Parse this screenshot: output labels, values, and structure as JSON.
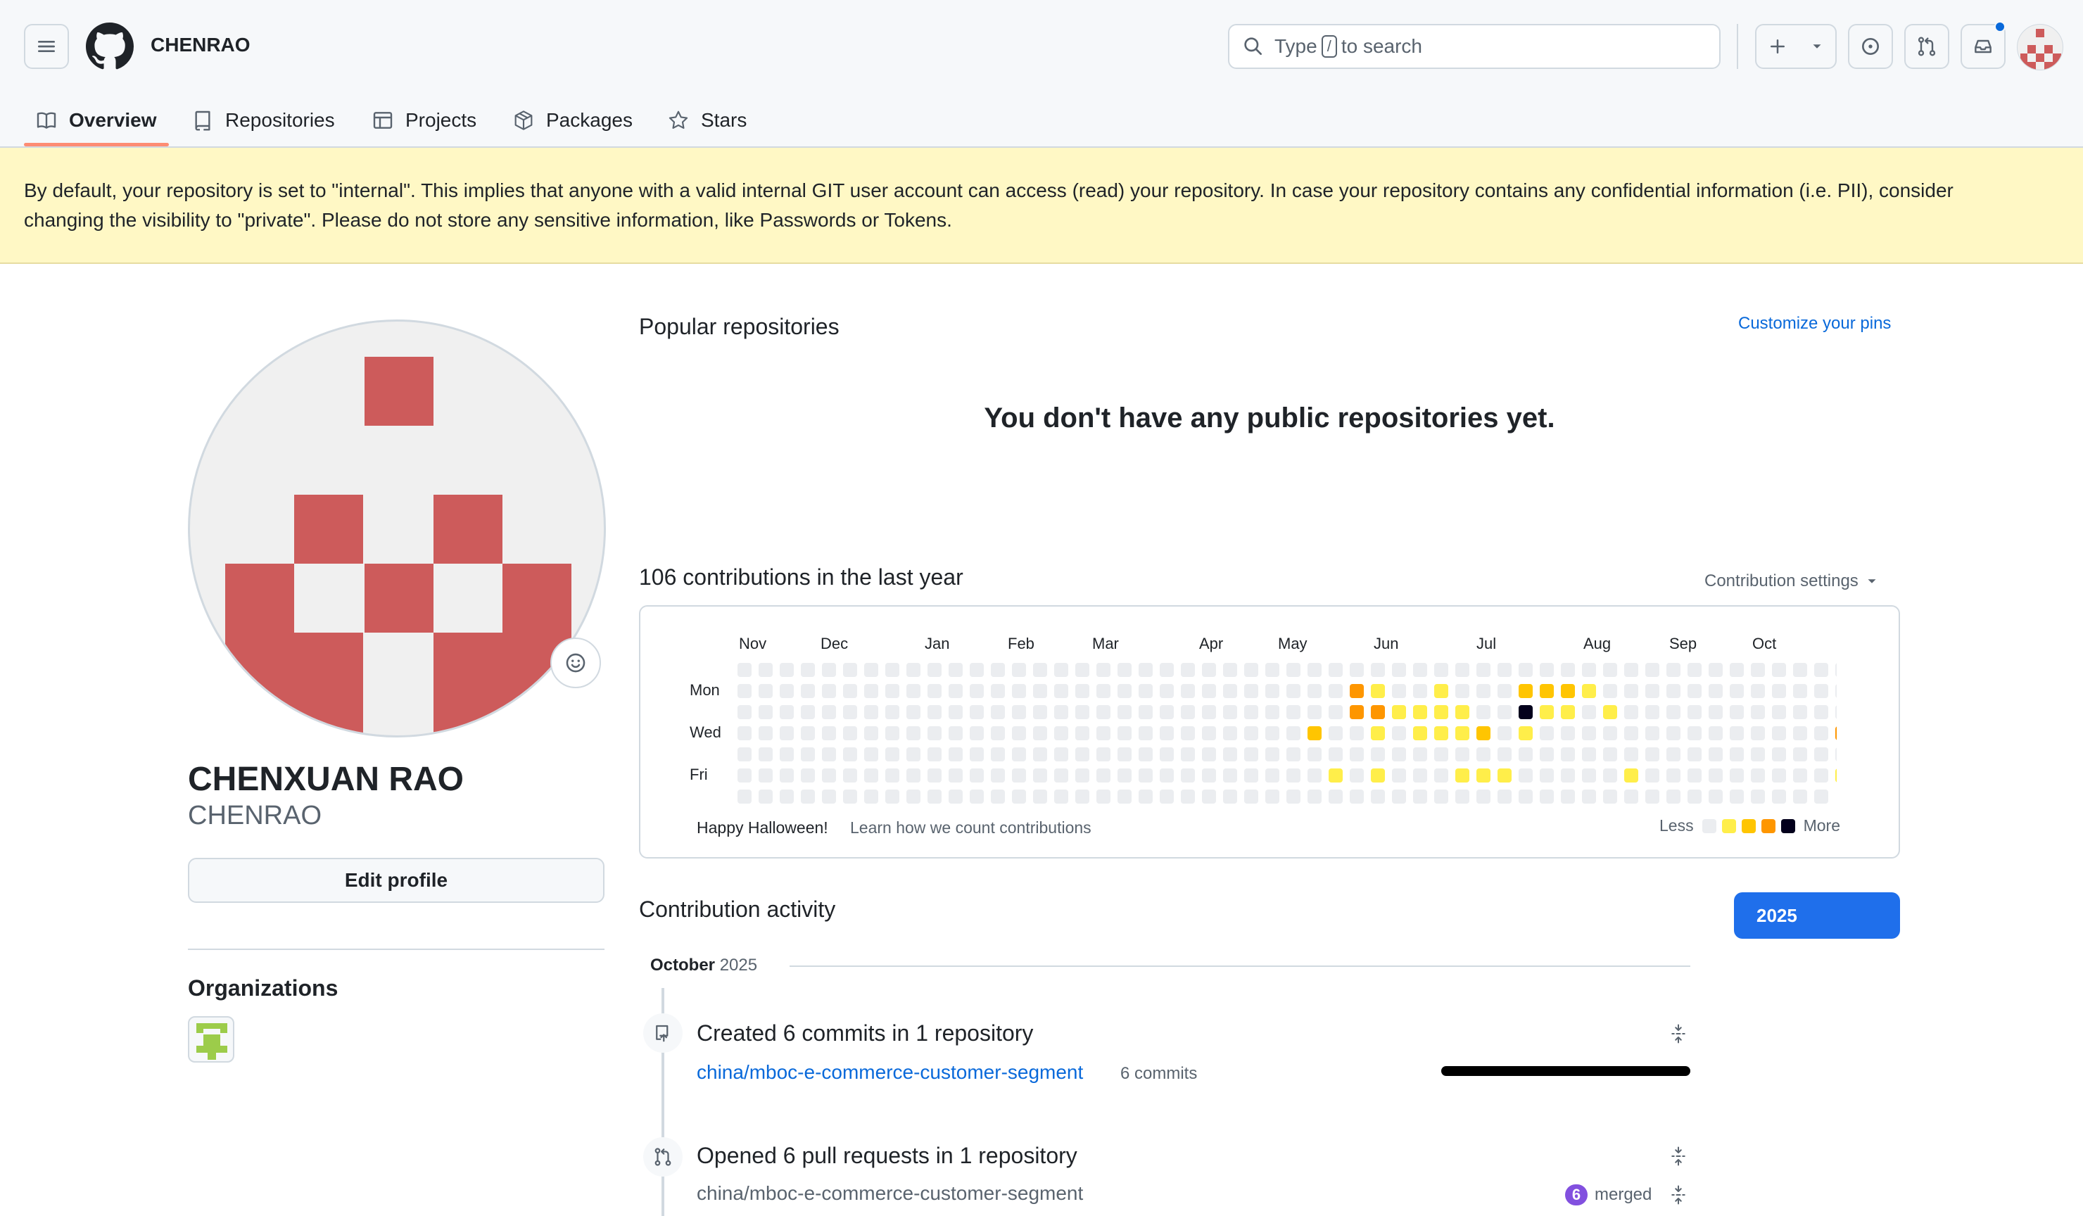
{
  "header": {
    "username": "CHENRAO",
    "search_prefix": "Type",
    "search_key": "/",
    "search_suffix": "to search"
  },
  "tabs": [
    {
      "label": "Overview",
      "icon": "book-icon",
      "active": true
    },
    {
      "label": "Repositories",
      "icon": "repo-icon"
    },
    {
      "label": "Projects",
      "icon": "table-icon"
    },
    {
      "label": "Packages",
      "icon": "package-icon"
    },
    {
      "label": "Stars",
      "icon": "star-icon"
    }
  ],
  "banner": {
    "line1": "By default, your repository is set to \"internal\". This implies that anyone with a valid internal GIT user account can access (read) your repository. In case your repository contains any confidential information (i.e. PII), consider",
    "line2": "changing the visibility to \"private\". Please do not store any sensitive information, like Passwords or Tokens."
  },
  "profile": {
    "full_name": "CHENXUAN RAO",
    "username": "CHENRAO",
    "edit_label": "Edit profile",
    "organizations_title": "Organizations"
  },
  "popular": {
    "title": "Popular repositories",
    "customize_label": "Customize your pins",
    "empty_message": "You don't have any public repositories yet."
  },
  "contributions": {
    "summary": "106 contributions in the last year",
    "settings_label": "Contribution settings",
    "months": [
      "Nov",
      "Dec",
      "Jan",
      "Feb",
      "Mar",
      "Apr",
      "May",
      "Jun",
      "Jul",
      "Aug",
      "Sep",
      "Oct"
    ],
    "day_labels": [
      "Mon",
      "Wed",
      "Fri"
    ],
    "halloween": "Happy Halloween!",
    "learn_link": "Learn how we count contributions",
    "legend_less": "Less",
    "legend_more": "More",
    "level_colors": [
      "#ebedf0",
      "#ffee4a",
      "#ffc501",
      "#fe9600",
      "#03001c"
    ]
  },
  "activity": {
    "title": "Contribution activity",
    "year": "2025",
    "month": "October",
    "month_year": "2025",
    "commits_title": "Created 6 commits in 1 repository",
    "repo": "china/mboc-e-commerce-customer-segment",
    "commit_count": "6 commits",
    "pr_title": "Opened 6 pull requests in 1 repository",
    "pr_repo": "china/mboc-e-commerce-customer-segment",
    "merged_count": "6",
    "merged_label": "merged"
  }
}
